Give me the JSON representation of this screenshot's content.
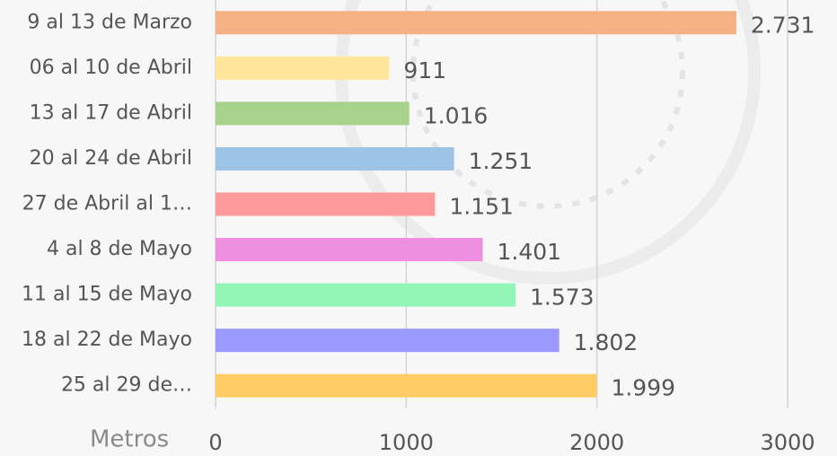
{
  "chart_data": {
    "type": "bar",
    "orientation": "horizontal",
    "categories": [
      "9 al 13 de Marzo",
      "06 al 10 de Abril",
      "13 al 17 de Abril",
      "20 al 24 de Abril",
      "27 de Abril al 1…",
      "4 al 8 de Mayo",
      "11 al 15 de Mayo",
      "18 al 22 de Mayo",
      "25 al 29 de…"
    ],
    "values": [
      2731,
      911,
      1016,
      1251,
      1151,
      1401,
      1573,
      1802,
      1999
    ],
    "value_labels": [
      "2.731",
      "911",
      "1.016",
      "1.251",
      "1.151",
      "1.401",
      "1.573",
      "1.802",
      "1.999"
    ],
    "colors": [
      "#f4b183",
      "#ffe699",
      "#a9d18e",
      "#9dc3e6",
      "#ff9999",
      "#ee8fdf",
      "#93f5b8",
      "#9999ff",
      "#ffcc66"
    ],
    "x_label": "Metros",
    "xlim": [
      0,
      3000
    ],
    "xticks": [
      0,
      1000,
      2000,
      3000
    ],
    "grid": true
  }
}
